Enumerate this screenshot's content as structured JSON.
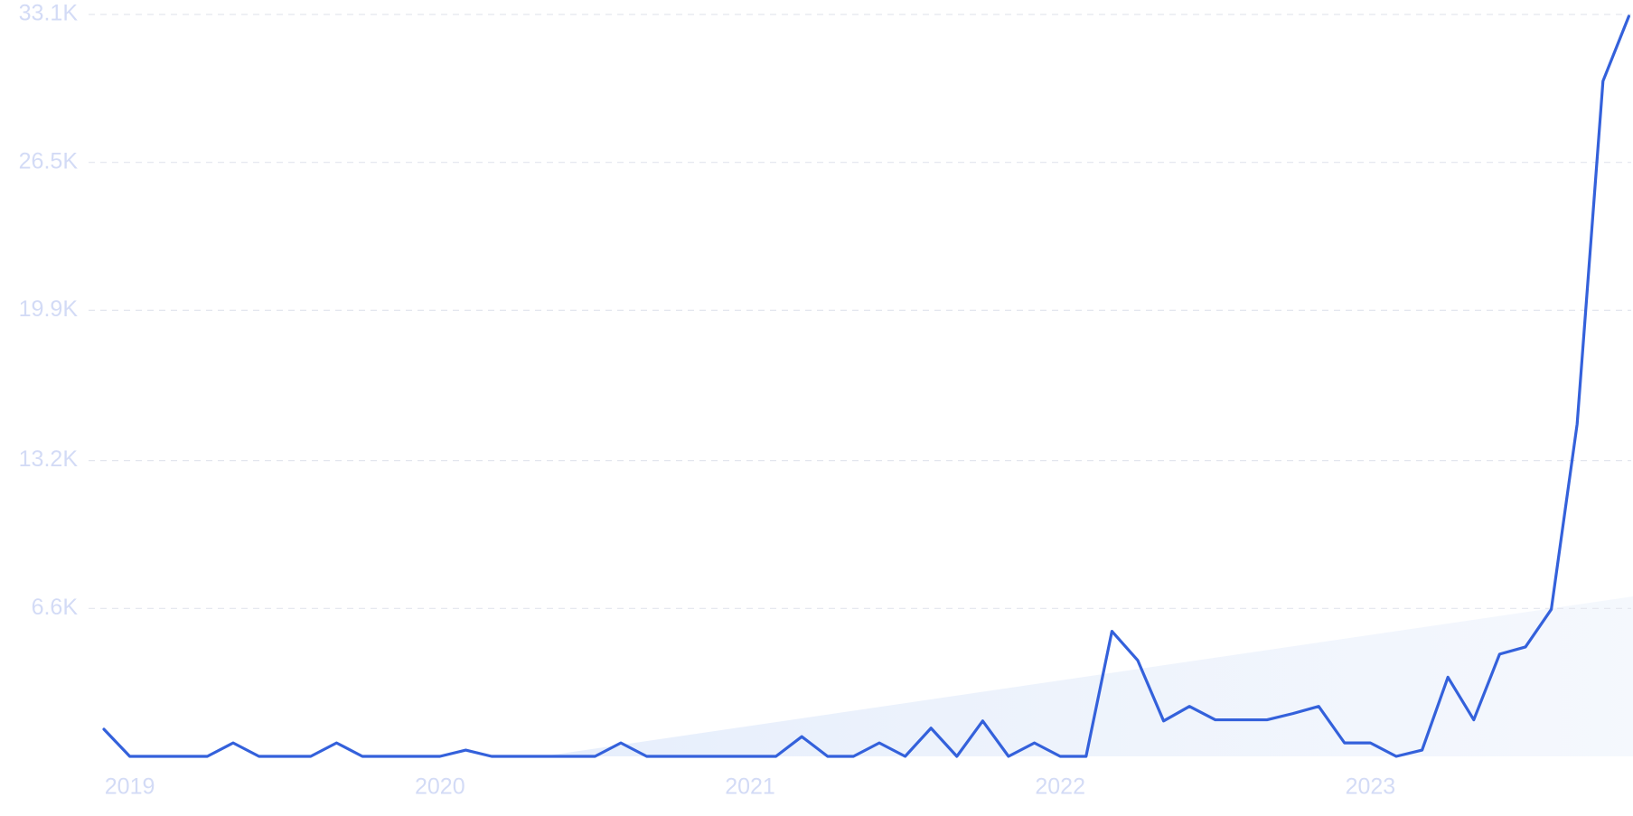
{
  "chart_data": {
    "type": "line",
    "categories": [
      null,
      "2019",
      null,
      null,
      null,
      null,
      null,
      null,
      null,
      null,
      null,
      null,
      null,
      "2020",
      null,
      null,
      null,
      null,
      null,
      null,
      null,
      null,
      null,
      null,
      null,
      "2021",
      null,
      null,
      null,
      null,
      null,
      null,
      null,
      null,
      null,
      null,
      null,
      "2022",
      null,
      null,
      null,
      null,
      null,
      null,
      null,
      null,
      null,
      null,
      null,
      "2023",
      null,
      null,
      null,
      null,
      null,
      null,
      null,
      null,
      null,
      null
    ],
    "series": [
      {
        "color": "#3461db",
        "values": [
          1210,
          0,
          0,
          0,
          0,
          600,
          0,
          0,
          0,
          600,
          0,
          0,
          0,
          0,
          280,
          0,
          0,
          0,
          0,
          0,
          600,
          0,
          0,
          0,
          0,
          0,
          0,
          880,
          0,
          0,
          600,
          0,
          1260,
          0,
          1580,
          0,
          600,
          0,
          0,
          5580,
          4280,
          1580,
          2230,
          1630,
          1630,
          1630,
          1910,
          2230,
          600,
          600,
          0,
          280,
          3530,
          1630,
          4560,
          4880,
          6560,
          14830,
          30130,
          33020
        ]
      }
    ],
    "ylim": [
      0,
      33100
    ],
    "yticks": [
      {
        "value": 6600,
        "label": "6.6K"
      },
      {
        "value": 13200,
        "label": "13.2K"
      },
      {
        "value": 19900,
        "label": "19.9K"
      },
      {
        "value": 26500,
        "label": "26.5K"
      },
      {
        "value": 33100,
        "label": "33.1K"
      }
    ],
    "grid": true
  }
}
